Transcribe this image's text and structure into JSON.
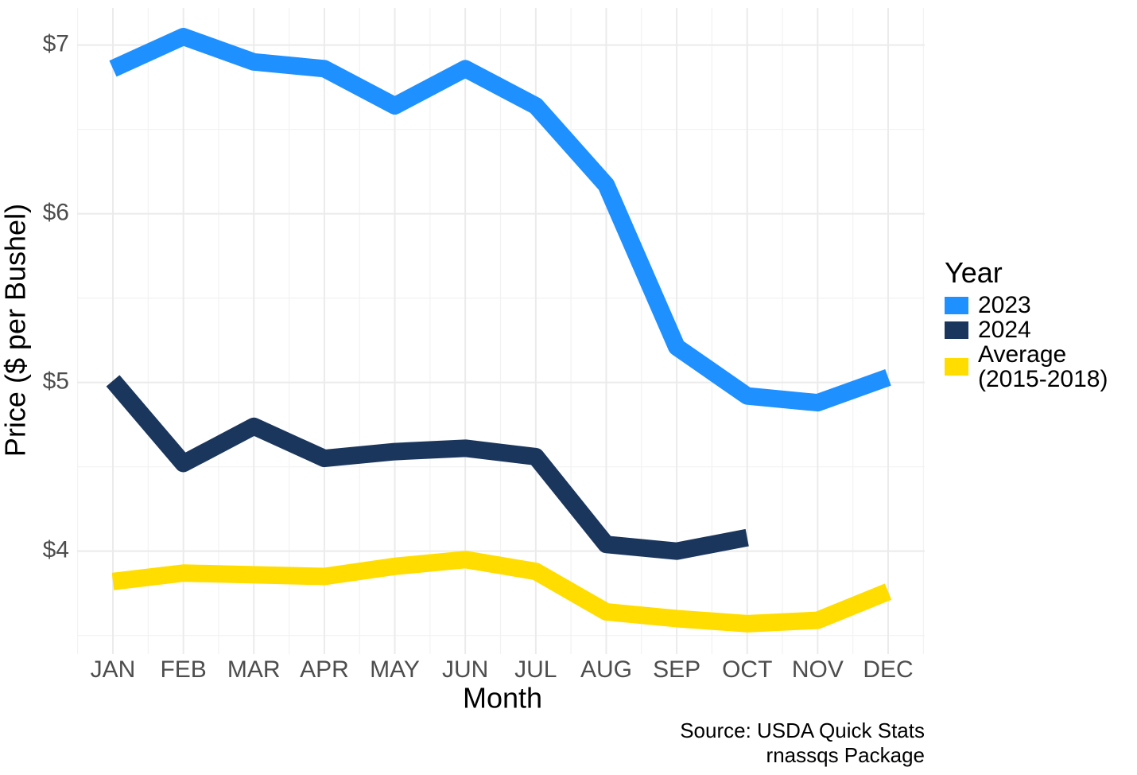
{
  "chart_data": {
    "type": "line",
    "x_label": "Month",
    "y_label": "Price ($ per Bushel)",
    "caption": [
      "Source: USDA Quick Stats",
      "rnassqs Package"
    ],
    "categories": [
      "JAN",
      "FEB",
      "MAR",
      "APR",
      "MAY",
      "JUN",
      "JUL",
      "AUG",
      "SEP",
      "OCT",
      "NOV",
      "DEC"
    ],
    "series": [
      {
        "name": "2023",
        "color": "#1e90ff",
        "values": [
          6.86,
          7.05,
          6.9,
          6.86,
          6.64,
          6.86,
          6.64,
          6.17,
          5.21,
          4.92,
          4.88,
          5.03
        ]
      },
      {
        "name": "2024",
        "color": "#1b365d",
        "values": [
          5.01,
          4.52,
          4.74,
          4.55,
          4.59,
          4.61,
          4.56,
          4.04,
          4.0,
          4.08,
          null,
          null
        ]
      },
      {
        "name": "Average\n(2015-2018)",
        "color": "#ffdd00",
        "values": [
          3.82,
          3.87,
          3.86,
          3.85,
          3.91,
          3.95,
          3.88,
          3.64,
          3.6,
          3.57,
          3.59,
          3.76
        ]
      }
    ],
    "legend_title": "Year",
    "legend_position": "right",
    "ylim": [
      3.39,
      7.22
    ],
    "yticks": [
      {
        "value": 4,
        "label": "$4"
      },
      {
        "value": 5,
        "label": "$5"
      },
      {
        "value": 6,
        "label": "$6"
      },
      {
        "value": 7,
        "label": "$7"
      }
    ],
    "minor_yticks": [
      3.5,
      4.5,
      5.5,
      6.5
    ],
    "grid": true
  }
}
